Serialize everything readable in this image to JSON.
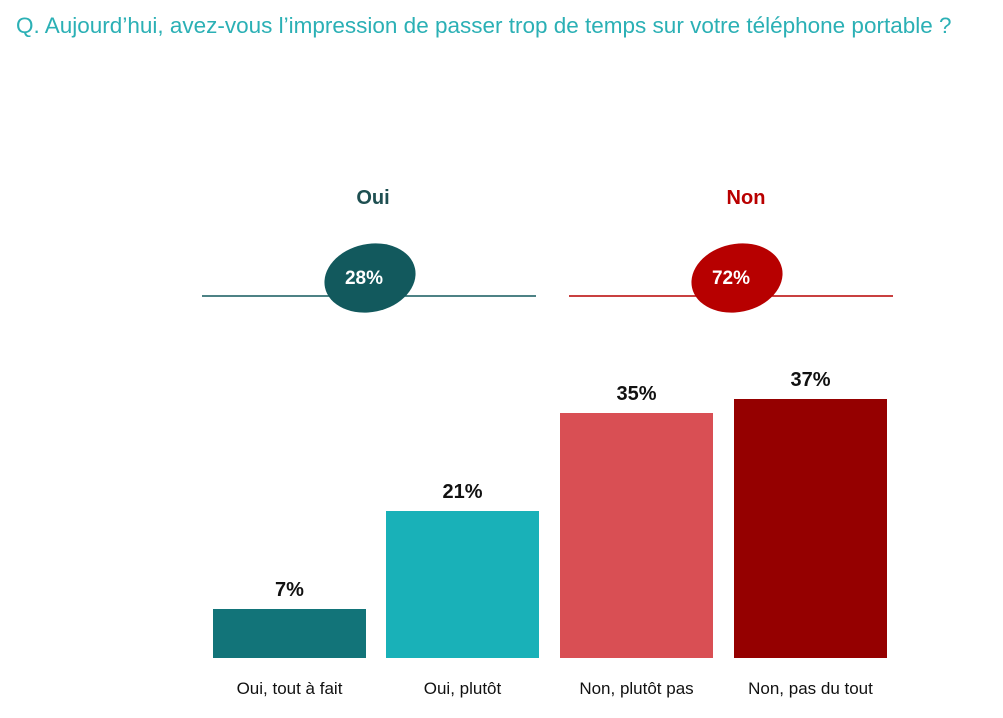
{
  "question": "Q. Aujourd’hui, avez-vous l’impression de passer trop de temps sur votre téléphone portable ?",
  "chart_data": {
    "type": "bar",
    "categories": [
      "Oui, tout à fait",
      "Oui, plutôt",
      "Non, plutôt pas",
      "Non, pas du tout"
    ],
    "values": [
      7,
      21,
      35,
      37
    ],
    "value_labels": [
      "7%",
      "21%",
      "35%",
      "37%"
    ],
    "colors": [
      "#127479",
      "#19b1b8",
      "#d94f54",
      "#950000"
    ],
    "ylim": [
      0,
      40
    ],
    "grid": false,
    "groups": [
      {
        "name": "Oui",
        "value": 28,
        "label": "28%",
        "color": "#12595d",
        "label_color": "#1e4f51",
        "categories": [
          0,
          1
        ]
      },
      {
        "name": "Non",
        "value": 72,
        "label": "72%",
        "color": "#b70000",
        "label_color": "#b90000",
        "categories": [
          2,
          3
        ]
      }
    ]
  }
}
